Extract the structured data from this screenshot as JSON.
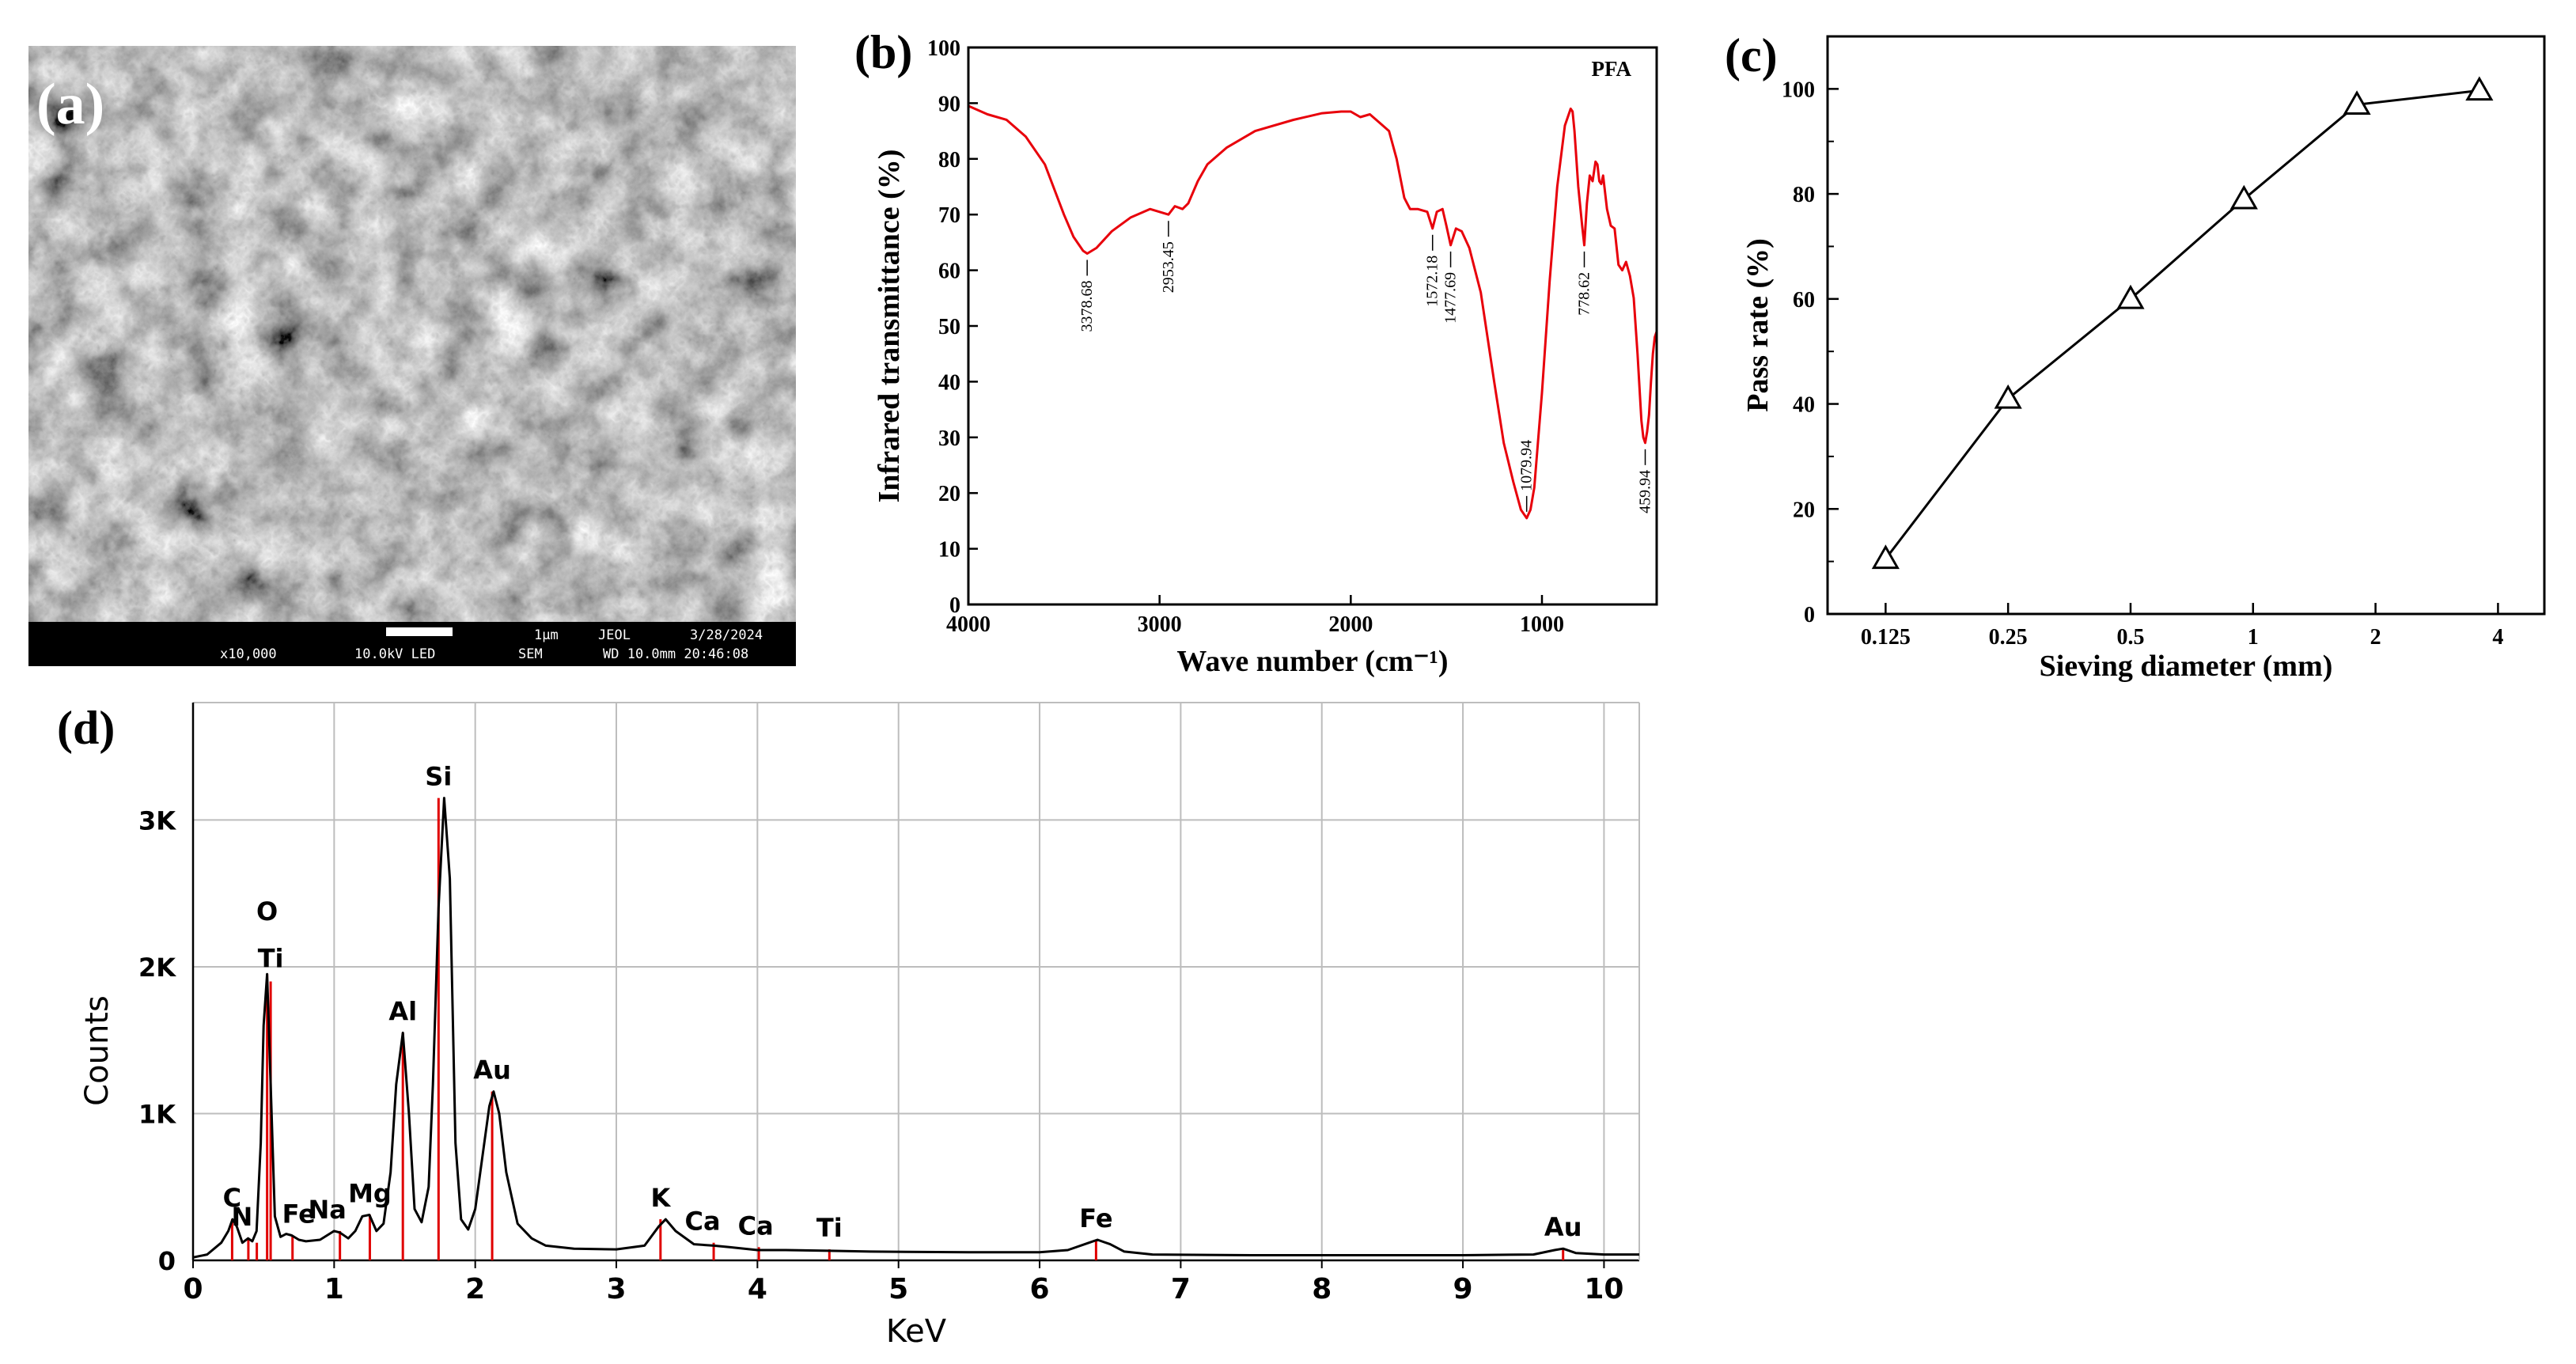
{
  "panels": {
    "a": {
      "label": "(a)",
      "scalebar": {
        "scale": "1μm",
        "brand": "JEOL",
        "date": "3/28/2024",
        "magnification": "x10,000",
        "voltage": "10.0kV LED",
        "mode": "SEM",
        "wd_time": "WD 10.0mm 20:46:08"
      }
    },
    "b": {
      "label": "(b)"
    },
    "c": {
      "label": "(c)"
    },
    "d": {
      "label": "(d)"
    }
  },
  "chart_data": [
    {
      "panel": "b",
      "type": "line",
      "title": "",
      "legend": "PFA",
      "xlabel": "Wave number (cm⁻¹)",
      "ylabel": "Infrared transmittance (%)",
      "xlim": [
        4000,
        400
      ],
      "x_reversed": true,
      "ylim": [
        0,
        100
      ],
      "xticks": [
        4000,
        3000,
        2000,
        1000
      ],
      "yticks": [
        0,
        10,
        20,
        30,
        40,
        50,
        60,
        70,
        80,
        90,
        100
      ],
      "color": "#e8000b",
      "series": [
        {
          "x": [
            4000,
            3900,
            3800,
            3700,
            3600,
            3500,
            3450,
            3400,
            3378.68,
            3330,
            3250,
            3150,
            3050,
            2953.45,
            2920,
            2880,
            2850,
            2800,
            2750,
            2650,
            2500,
            2300,
            2150,
            2050,
            2000,
            1950,
            1900,
            1850,
            1800,
            1760,
            1720,
            1690,
            1650,
            1600,
            1572.18,
            1550,
            1520,
            1500,
            1477.69,
            1450,
            1420,
            1380,
            1320,
            1250,
            1200,
            1150,
            1110,
            1079.94,
            1060,
            1040,
            1000,
            960,
            920,
            880,
            850,
            840,
            830,
            810,
            790,
            778.62,
            765,
            750,
            735,
            720,
            710,
            700,
            690,
            680,
            660,
            640,
            620,
            600,
            580,
            560,
            540,
            520,
            500,
            480,
            470,
            459.94,
            450,
            440,
            430,
            420,
            410,
            400
          ],
          "y": [
            89.5,
            88,
            87,
            84,
            79,
            70,
            66,
            63.5,
            63,
            64,
            67,
            69.5,
            71,
            70,
            71.5,
            71,
            72,
            76,
            79,
            82,
            85,
            87,
            88.2,
            88.5,
            88.5,
            87.5,
            88,
            86.5,
            85,
            80,
            73,
            71,
            71,
            70.5,
            67.5,
            70.5,
            71,
            68,
            64.5,
            67.5,
            67,
            64,
            56,
            40,
            29,
            22,
            17,
            15.5,
            17,
            21,
            38,
            58,
            75,
            86,
            89,
            88.5,
            85,
            75,
            68,
            64.5,
            72,
            77,
            76,
            79.5,
            79,
            76,
            75.5,
            77,
            71,
            68,
            67.5,
            61,
            60,
            61.5,
            59,
            55,
            45,
            33,
            30,
            29,
            31,
            34,
            40,
            45,
            48,
            49
          ]
        }
      ],
      "annotations": [
        {
          "x": 3378.68,
          "y": 63,
          "text": "3378.68"
        },
        {
          "x": 2953.45,
          "y": 70,
          "text": "2953.45"
        },
        {
          "x": 1572.18,
          "y": 67.5,
          "text": "1572.18"
        },
        {
          "x": 1477.69,
          "y": 64.5,
          "text": "1477.69"
        },
        {
          "x": 1079.94,
          "y": 15.5,
          "text": "1079.94"
        },
        {
          "x": 778.62,
          "y": 64.5,
          "text": "778.62"
        },
        {
          "x": 459.94,
          "y": 29,
          "text": "459.94"
        }
      ]
    },
    {
      "panel": "c",
      "type": "line",
      "title": "",
      "xlabel": "Sieving diameter (mm)",
      "ylabel": "Pass rate (%)",
      "xscale": "log2",
      "xlim": [
        0.09,
        5.2
      ],
      "ylim": [
        0,
        110
      ],
      "xticks": [
        0.125,
        0.25,
        0.5,
        1,
        2,
        4
      ],
      "xtick_labels": [
        "0.125",
        "0.25",
        "0.5",
        "1",
        "2",
        "4"
      ],
      "yticks": [
        0,
        20,
        40,
        60,
        80,
        100
      ],
      "marker": "triangle",
      "series": [
        {
          "x": [
            0.125,
            0.25,
            0.5,
            0.95,
            1.8,
            3.6
          ],
          "y": [
            10.5,
            41,
            60,
            79,
            97,
            99.7
          ]
        }
      ]
    },
    {
      "panel": "d",
      "type": "line",
      "title": "",
      "xlabel": "KeV",
      "ylabel": "Counts",
      "xlim": [
        0,
        10.25
      ],
      "ylim": [
        0,
        3800
      ],
      "xticks": [
        0,
        1,
        2,
        3,
        4,
        5,
        6,
        7,
        8,
        9,
        10
      ],
      "yticks": [
        0,
        1000,
        2000,
        3000
      ],
      "ytick_labels": [
        "0",
        "1K",
        "2K",
        "3K"
      ],
      "grid": true,
      "series": [
        {
          "x": [
            0,
            0.1,
            0.2,
            0.25,
            0.28,
            0.31,
            0.35,
            0.39,
            0.42,
            0.45,
            0.48,
            0.5,
            0.525,
            0.55,
            0.58,
            0.62,
            0.66,
            0.7,
            0.75,
            0.8,
            0.9,
            1.0,
            1.04,
            1.1,
            1.15,
            1.2,
            1.25,
            1.3,
            1.35,
            1.4,
            1.44,
            1.487,
            1.53,
            1.57,
            1.62,
            1.67,
            1.7,
            1.74,
            1.78,
            1.82,
            1.86,
            1.9,
            1.95,
            2.0,
            2.05,
            2.1,
            2.13,
            2.17,
            2.22,
            2.3,
            2.4,
            2.5,
            2.7,
            3.0,
            3.2,
            3.3,
            3.35,
            3.42,
            3.55,
            3.69,
            3.8,
            4.0,
            4.2,
            4.51,
            4.8,
            5.5,
            6.0,
            6.2,
            6.35,
            6.41,
            6.5,
            6.6,
            6.8,
            7.5,
            8.0,
            8.5,
            9.0,
            9.5,
            9.65,
            9.71,
            9.8,
            10.0,
            10.25
          ],
          "y": [
            20,
            40,
            120,
            200,
            280,
            230,
            120,
            150,
            130,
            200,
            800,
            1600,
            1950,
            1200,
            300,
            160,
            180,
            170,
            140,
            130,
            140,
            200,
            190,
            150,
            200,
            300,
            310,
            200,
            250,
            600,
            1200,
            1550,
            1000,
            350,
            260,
            500,
            1200,
            2400,
            3150,
            2600,
            800,
            280,
            210,
            350,
            700,
            1050,
            1150,
            1000,
            600,
            250,
            150,
            100,
            80,
            75,
            100,
            230,
            280,
            200,
            110,
            100,
            90,
            70,
            70,
            65,
            60,
            55,
            55,
            70,
            120,
            140,
            110,
            60,
            40,
            35,
            35,
            35,
            35,
            40,
            70,
            80,
            50,
            40,
            40
          ]
        }
      ],
      "peaks": [
        {
          "x": 0.277,
          "y": 280,
          "label": "C"
        },
        {
          "x": 0.392,
          "y": 150,
          "label": "N"
        },
        {
          "x": 0.452,
          "y": 120,
          "label": ""
        },
        {
          "x": 0.525,
          "y": 1950,
          "label": "O"
        },
        {
          "x": 0.55,
          "y": 1900,
          "label": "Ti"
        },
        {
          "x": 0.705,
          "y": 170,
          "label": "Fe"
        },
        {
          "x": 1.041,
          "y": 200,
          "label": "Na"
        },
        {
          "x": 1.253,
          "y": 310,
          "label": "Mg"
        },
        {
          "x": 1.487,
          "y": 1550,
          "label": "Al"
        },
        {
          "x": 1.74,
          "y": 3150,
          "label": "Si"
        },
        {
          "x": 2.12,
          "y": 1150,
          "label": "Au"
        },
        {
          "x": 3.313,
          "y": 280,
          "label": "K"
        },
        {
          "x": 3.69,
          "y": 120,
          "label": "Ca"
        },
        {
          "x": 4.01,
          "y": 90,
          "label": "Ca"
        },
        {
          "x": 4.51,
          "y": 75,
          "label": "Ti"
        },
        {
          "x": 6.4,
          "y": 140,
          "label": "Fe"
        },
        {
          "x": 9.71,
          "y": 80,
          "label": "Au"
        }
      ]
    }
  ]
}
